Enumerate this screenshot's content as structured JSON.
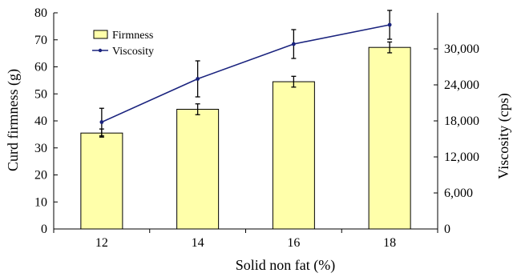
{
  "chart_data": {
    "type": "bar+line",
    "title": "",
    "xlabel": "Solid non fat (%)",
    "ylabel_left": "Curd firmness (g)",
    "ylabel_right": "Viscosity (cps)",
    "categories": [
      "12",
      "14",
      "16",
      "18"
    ],
    "ylim_left": [
      0,
      80
    ],
    "yticks_left": [
      0,
      10,
      20,
      30,
      40,
      50,
      60,
      70,
      80
    ],
    "ylim_right": [
      0,
      36000
    ],
    "yticks_right": [
      0,
      6000,
      12000,
      18000,
      24000,
      30000
    ],
    "ytick_labels_right": [
      "0",
      "6,000",
      "12,000",
      "18,000",
      "24,000",
      "30,000"
    ],
    "grid": false,
    "legend_position": "top-left",
    "series": [
      {
        "name": "Firmness",
        "kind": "bar",
        "axis": "left",
        "color": "#ffffaa",
        "values": [
          35.5,
          44.3,
          54.5,
          67.2
        ],
        "errors": [
          1.5,
          2.0,
          2.0,
          2.0
        ]
      },
      {
        "name": "Viscosity",
        "kind": "line",
        "axis": "right",
        "color": "#1a237e",
        "values": [
          17800,
          25000,
          30800,
          34000
        ],
        "errors": [
          2300,
          3000,
          2400,
          2400
        ]
      }
    ]
  }
}
